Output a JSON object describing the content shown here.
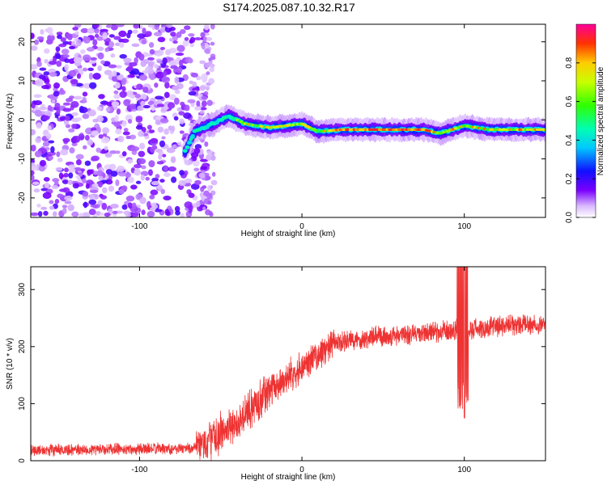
{
  "page": {
    "title": "S174.2025.087.10.32.R17"
  },
  "chart_data": [
    {
      "type": "heatmap",
      "xlabel": "Height of straight line (km)",
      "ylabel": "Frequency (Hz)",
      "xlim": [
        -167,
        150
      ],
      "ylim": [
        -25,
        24.5
      ],
      "xticks": [
        -100,
        0,
        100
      ],
      "yticks": [
        -20,
        -10,
        0,
        10,
        20
      ],
      "colorbar": {
        "label": "Normalized spectral amplitude",
        "range": [
          0,
          1
        ],
        "ticks": [
          0.0,
          0.2,
          0.4,
          0.6,
          0.8
        ],
        "tick_labels": [
          "0.0",
          "0.2",
          "0.4",
          "0.6",
          "0.8"
        ]
      },
      "ridge": {
        "description_points": [
          {
            "x": -72,
            "y": -8
          },
          {
            "x": -66,
            "y": -3
          },
          {
            "x": -55,
            "y": -1
          },
          {
            "x": -45,
            "y": 1
          },
          {
            "x": -35,
            "y": -1
          },
          {
            "x": -20,
            "y": -2
          },
          {
            "x": 0,
            "y": -1
          },
          {
            "x": 10,
            "y": -3
          },
          {
            "x": 25,
            "y": -2.5
          },
          {
            "x": 75,
            "y": -2.5
          },
          {
            "x": 85,
            "y": -3.5
          },
          {
            "x": 100,
            "y": -1.5
          },
          {
            "x": 115,
            "y": -2.5
          },
          {
            "x": 150,
            "y": -2.5
          }
        ]
      },
      "noise_region": {
        "x": [
          -167,
          -58
        ]
      }
    },
    {
      "type": "line",
      "xlabel": "Height of straight line (km)",
      "ylabel": "SNR (10 * v/v)",
      "xlim": [
        -167,
        150
      ],
      "ylim": [
        0,
        340
      ],
      "xticks": [
        -100,
        0,
        100
      ],
      "yticks": [
        0,
        100,
        200,
        300
      ],
      "series": [
        {
          "color": "#ee3333",
          "trend": [
            {
              "x": -167,
              "y": 18
            },
            {
              "x": -65,
              "y": 22
            },
            {
              "x": -55,
              "y": 40
            },
            {
              "x": -40,
              "y": 65
            },
            {
              "x": -25,
              "y": 110
            },
            {
              "x": -10,
              "y": 145
            },
            {
              "x": 5,
              "y": 175
            },
            {
              "x": 20,
              "y": 205
            },
            {
              "x": 40,
              "y": 215
            },
            {
              "x": 60,
              "y": 220
            },
            {
              "x": 80,
              "y": 225
            },
            {
              "x": 95,
              "y": 228
            },
            {
              "x": 120,
              "y": 235
            },
            {
              "x": 150,
              "y": 240
            }
          ],
          "spikes": [
            {
              "x": 97,
              "y": 340
            },
            {
              "x": 99,
              "y": 120
            },
            {
              "x": 100,
              "y": 75
            },
            {
              "x": 101,
              "y": 330
            }
          ]
        }
      ]
    }
  ]
}
